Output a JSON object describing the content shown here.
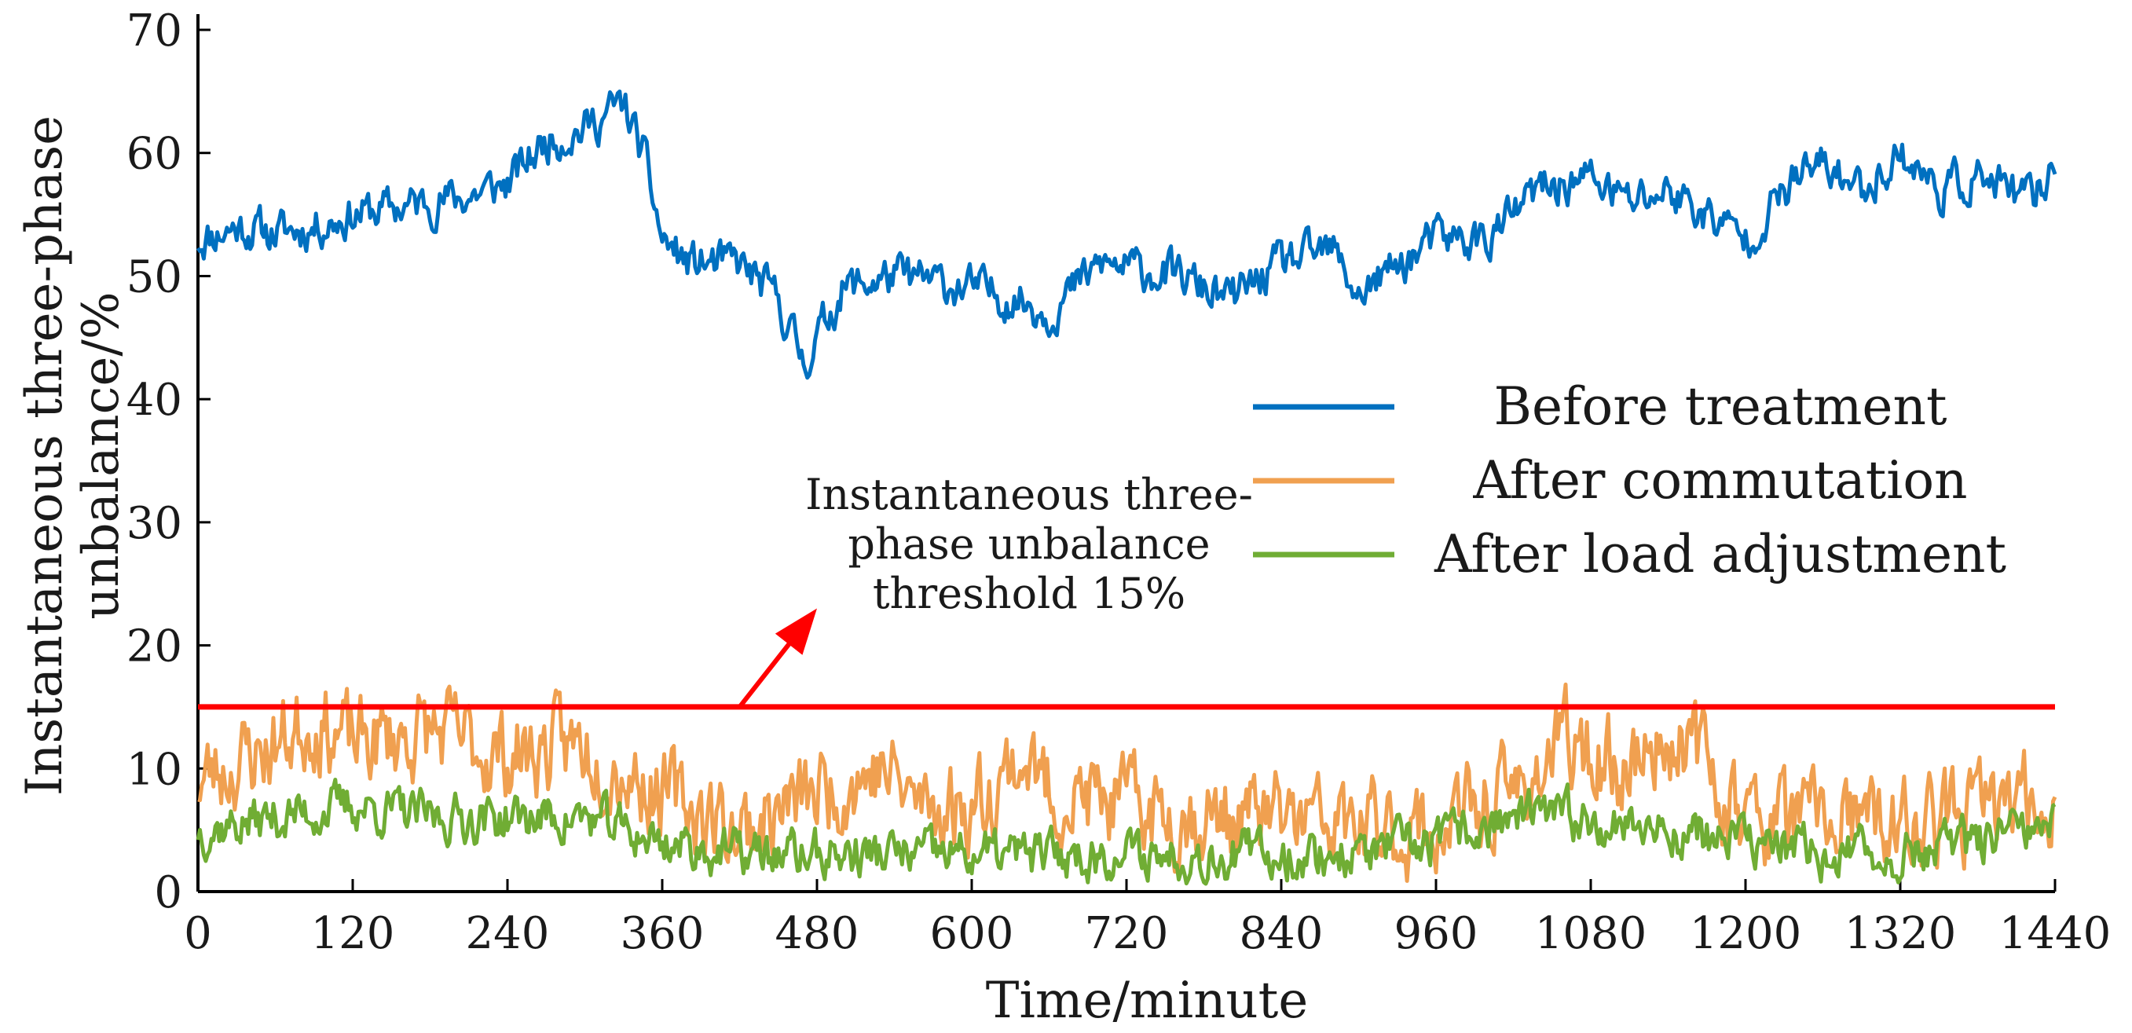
{
  "chart_data": {
    "type": "line",
    "title": "",
    "xlabel": "Time/minute",
    "ylabel_lines": [
      "Instantaneous three-phase",
      "unbalance/%"
    ],
    "xlim": [
      0,
      1440
    ],
    "ylim": [
      0,
      70
    ],
    "xticks": [
      0,
      120,
      240,
      360,
      480,
      600,
      720,
      840,
      960,
      1080,
      1200,
      1320,
      1440
    ],
    "yticks": [
      0,
      10,
      20,
      30,
      40,
      50,
      60,
      70
    ],
    "grid": false,
    "legend_position": "center-right",
    "series": [
      {
        "name": "Before treatment",
        "color": "#0070c0",
        "x": [
          0,
          30,
          60,
          90,
          120,
          150,
          180,
          210,
          240,
          270,
          300,
          330,
          345,
          360,
          380,
          420,
          450,
          470,
          500,
          540,
          600,
          640,
          660,
          700,
          760,
          800,
          840,
          880,
          900,
          960,
          1000,
          1040,
          1080,
          1110,
          1140,
          1170,
          1200,
          1240,
          1260,
          1290,
          1320,
          1350,
          1380,
          1420,
          1440
        ],
        "values": [
          53,
          54,
          53.5,
          54,
          55,
          55.5,
          56,
          56.5,
          57.5,
          61,
          62,
          64,
          60,
          53,
          51,
          51,
          48,
          43,
          49,
          50,
          49,
          48,
          47,
          51,
          50,
          48,
          51,
          52,
          48.5,
          53,
          53,
          57,
          58,
          56,
          57,
          55,
          53,
          58,
          59,
          57,
          60,
          57,
          58,
          56,
          59
        ]
      },
      {
        "name": "After commutation",
        "color": "#f0a050",
        "x": [
          0,
          60,
          90,
          120,
          180,
          240,
          300,
          330,
          360,
          420,
          480,
          530,
          560,
          600,
          640,
          660,
          720,
          780,
          840,
          900,
          960,
          1020,
          1060,
          1100,
          1150,
          1200,
          1260,
          1320,
          1400,
          1440
        ],
        "values": [
          9,
          12,
          14,
          12,
          13,
          11,
          12,
          10,
          8,
          5,
          8,
          10,
          7,
          7,
          11,
          8,
          7,
          6,
          6,
          5,
          5,
          8,
          12,
          10,
          13,
          6,
          6,
          5,
          7,
          8
        ]
      },
      {
        "name": "After load adjustment",
        "color": "#70ad34",
        "x": [
          0,
          60,
          120,
          180,
          240,
          300,
          360,
          420,
          480,
          540,
          600,
          660,
          720,
          780,
          840,
          900,
          960,
          1020,
          1080,
          1140,
          1200,
          1260,
          1320,
          1380,
          1440
        ],
        "values": [
          5,
          6,
          7,
          6,
          6,
          6,
          4,
          3,
          3,
          3,
          3,
          3,
          3,
          3,
          3,
          3,
          4,
          6,
          6,
          5,
          4,
          3,
          3,
          4,
          5
        ]
      }
    ],
    "threshold": {
      "value": 15,
      "color": "#ff0000",
      "label_lines": [
        "Instantaneous three-",
        "phase unbalance",
        "threshold 15%"
      ]
    }
  }
}
